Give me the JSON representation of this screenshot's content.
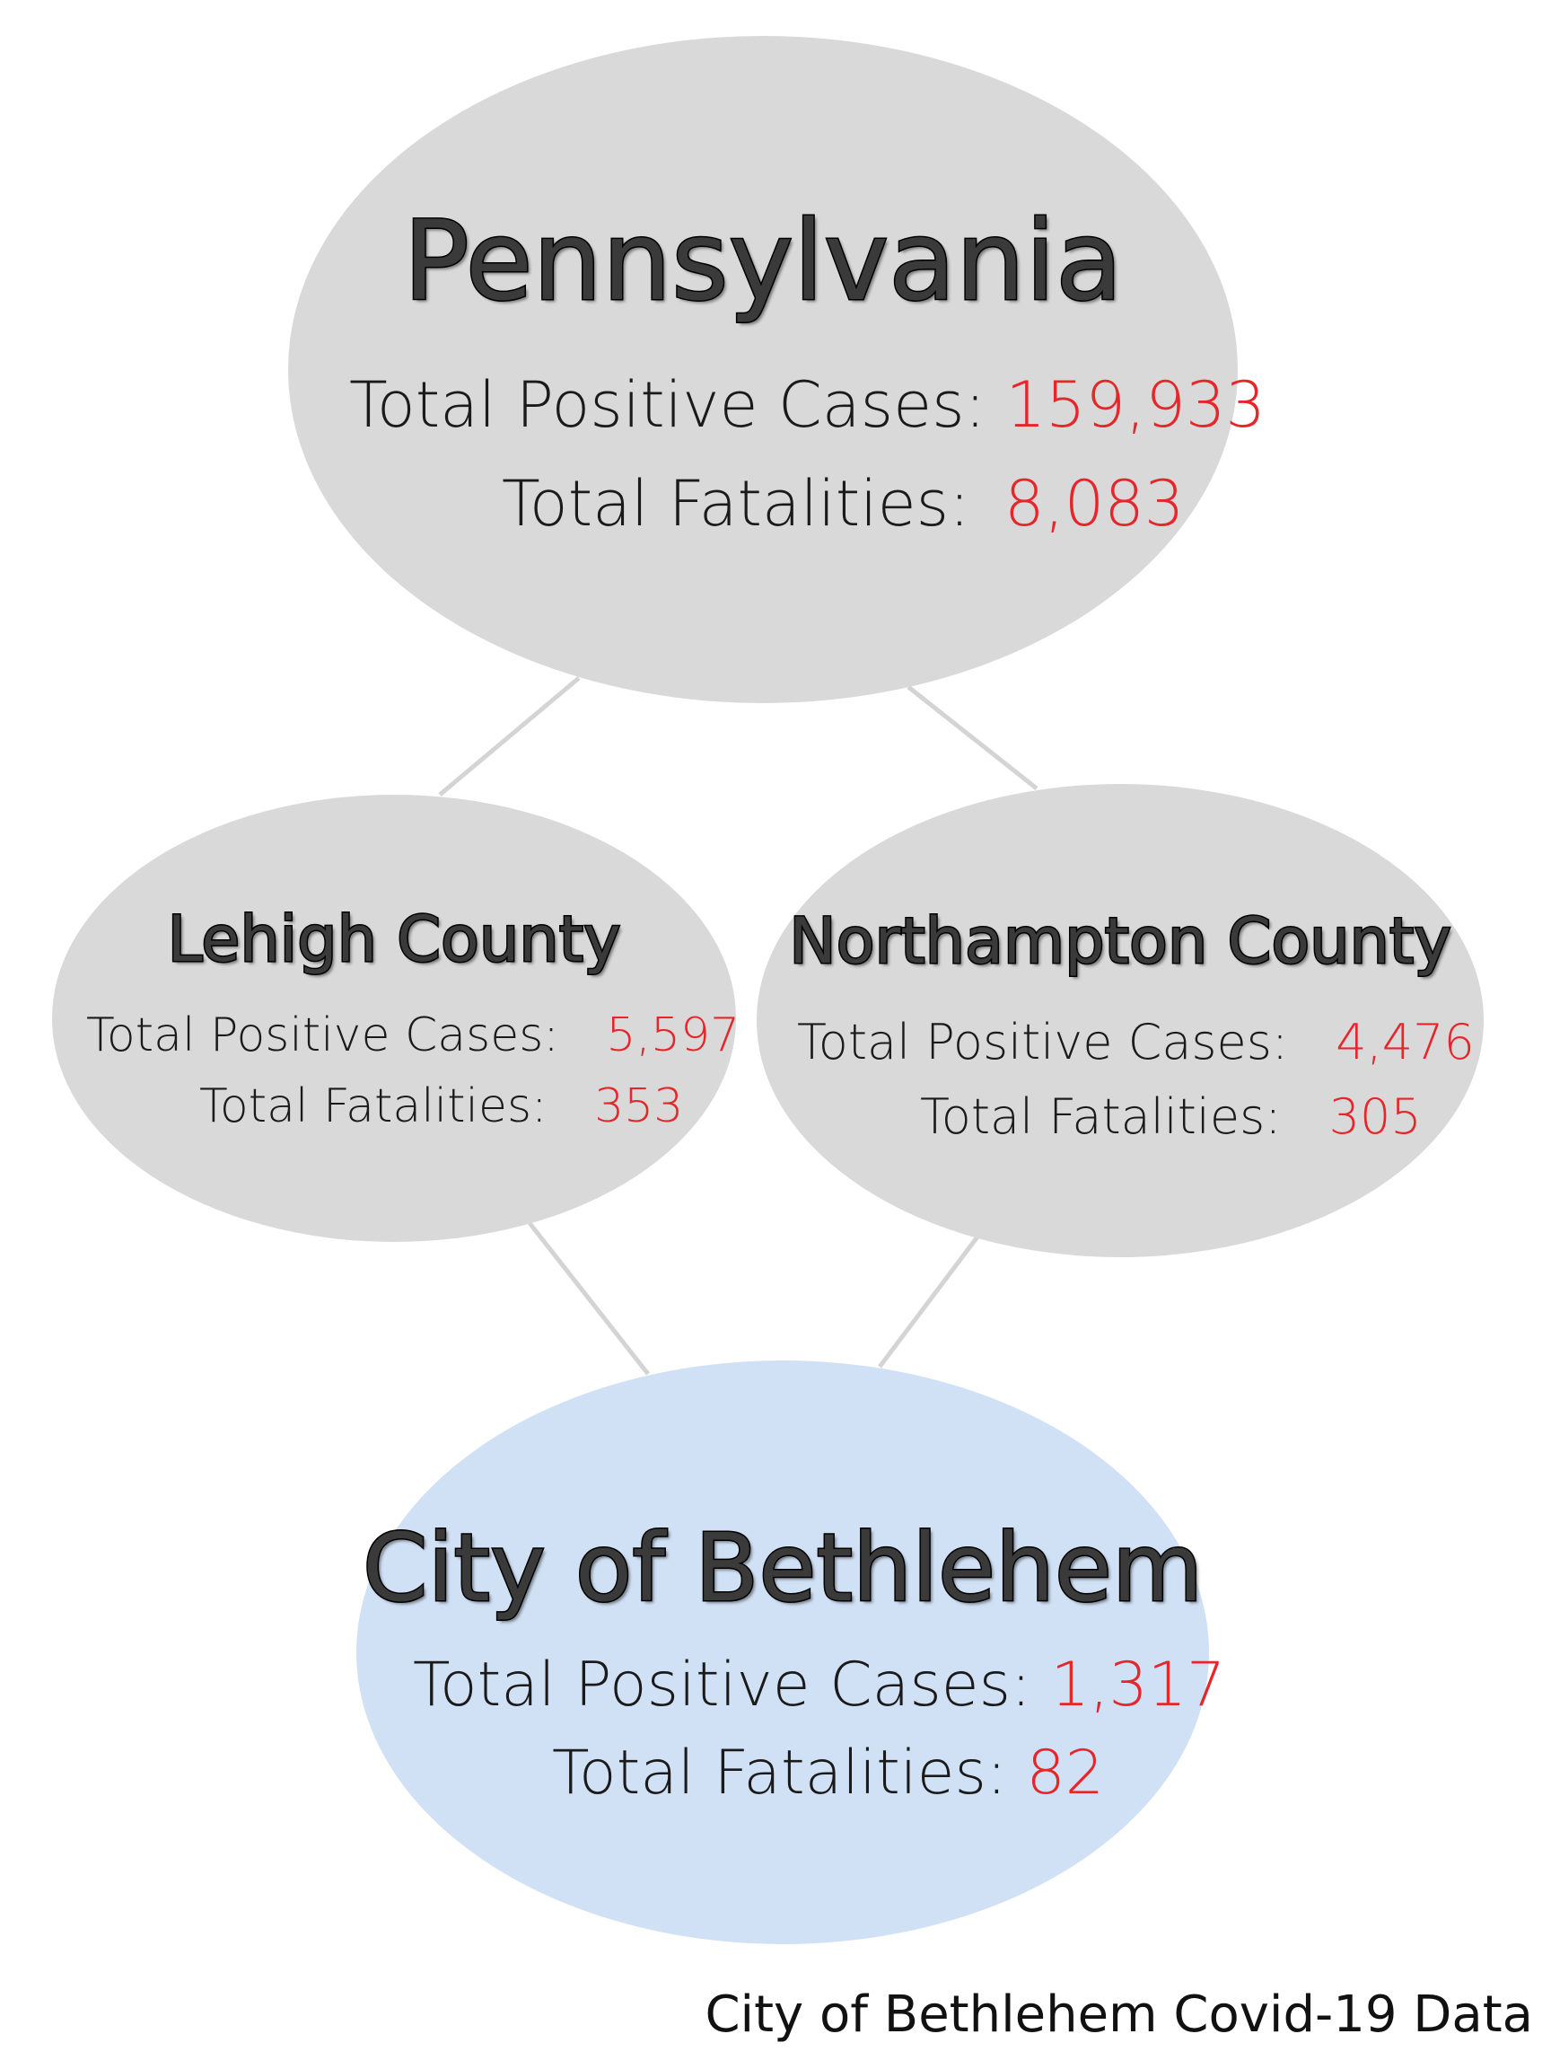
{
  "nodes": {
    "state": {
      "name": "Pennsylvania",
      "cases_label": "Total Positive Cases:",
      "cases_value": "159,933",
      "fatalities_label": "Total Fatalities:",
      "fatalities_value": "8,083"
    },
    "lehigh": {
      "name": "Lehigh County",
      "cases_label": "Total Positive Cases:",
      "cases_value": "5,597",
      "fatalities_label": "Total Fatalities:",
      "fatalities_value": "353"
    },
    "northampton": {
      "name": "Northampton County",
      "cases_label": "Total Positive Cases:",
      "cases_value": "4,476",
      "fatalities_label": "Total Fatalities:",
      "fatalities_value": "305"
    },
    "city": {
      "name": "City of Bethlehem",
      "cases_label": "Total Positive Cases:",
      "cases_value": "1,317",
      "fatalities_label": "Total Fatalities:",
      "fatalities_value": "82"
    }
  },
  "caption": "City of Bethlehem Covid-19 Data",
  "colors": {
    "node_gray": "#d9d9d9",
    "node_blue": "#d1e1f5",
    "value_red": "#e5262a",
    "connector": "#d4d4d4"
  }
}
